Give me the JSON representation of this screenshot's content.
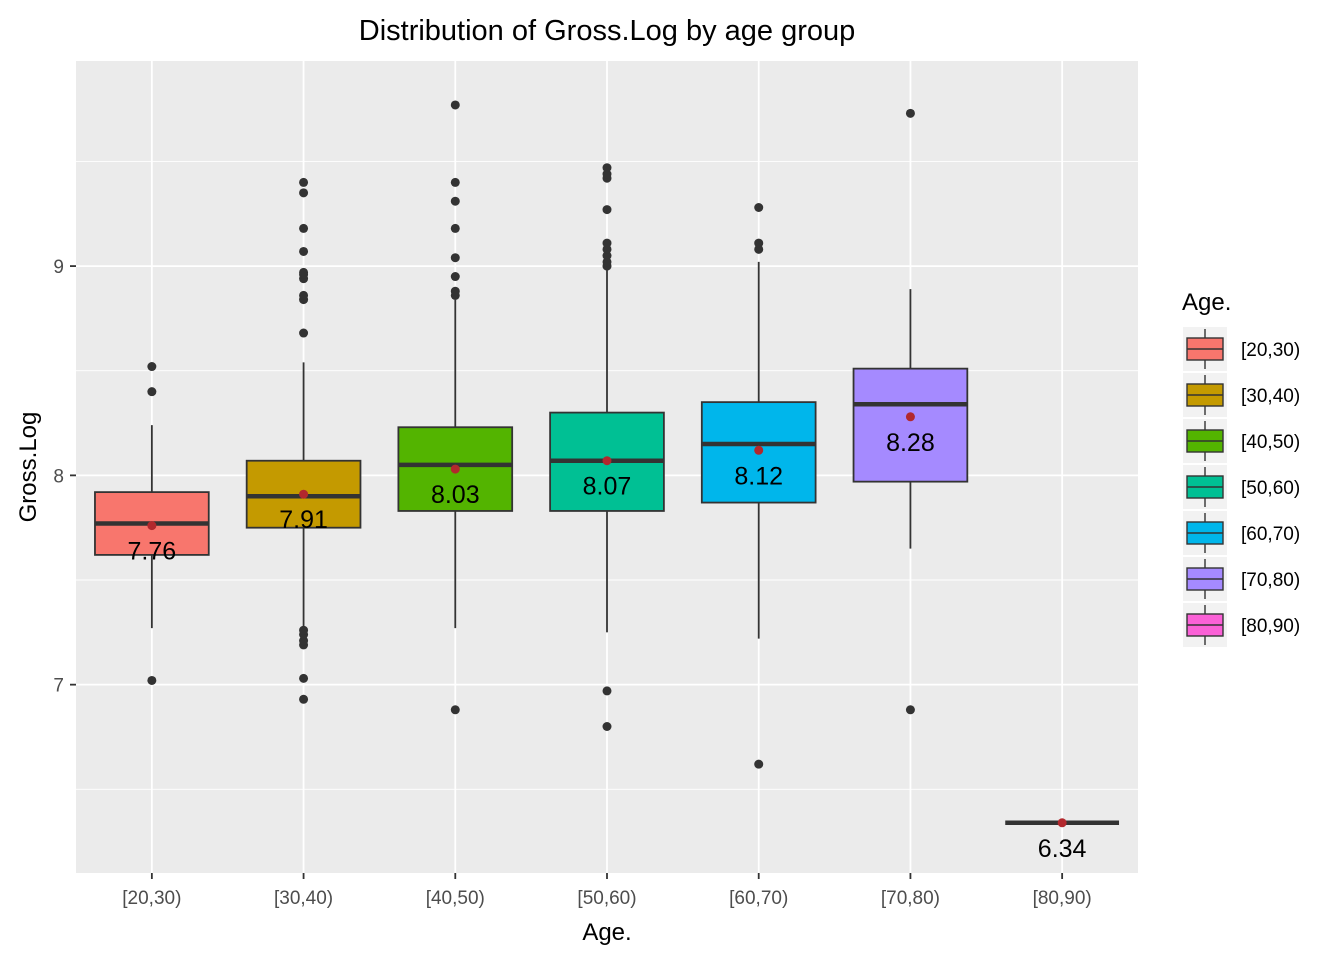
{
  "chart_data": {
    "type": "boxplot",
    "title": "Distribution of Gross.Log by age group",
    "xlabel": "Age.",
    "ylabel": "Gross.Log",
    "ylim": [
      6.1,
      9.98
    ],
    "y_ticks": [
      7,
      8,
      9
    ],
    "y_tick_labels": [
      "7",
      "8",
      "9"
    ],
    "grid": true,
    "legend": {
      "title": "Age.",
      "position": "right"
    },
    "mean_point_color": "#B2282D",
    "categories": [
      "[20,30)",
      "[30,40)",
      "[40,50)",
      "[50,60)",
      "[60,70)",
      "[70,80)",
      "[80,90)"
    ],
    "boxes": [
      {
        "category": "[20,30)",
        "color": "#F8766D",
        "q1": 7.62,
        "median": 7.77,
        "q3": 7.92,
        "whisker_low": 7.27,
        "whisker_high": 8.24,
        "mean": 7.76,
        "mean_label": "7.76",
        "outliers": [
          7.02,
          8.4,
          8.52
        ]
      },
      {
        "category": "[30,40)",
        "color": "#C49A00",
        "q1": 7.75,
        "median": 7.9,
        "q3": 8.07,
        "whisker_low": 7.27,
        "whisker_high": 8.54,
        "mean": 7.91,
        "mean_label": "7.91",
        "outliers": [
          6.93,
          7.03,
          7.19,
          7.21,
          7.24,
          7.26,
          8.68,
          8.84,
          8.86,
          8.94,
          8.96,
          8.97,
          9.07,
          9.18,
          9.35,
          9.4
        ]
      },
      {
        "category": "[40,50)",
        "color": "#53B400",
        "q1": 7.83,
        "median": 8.05,
        "q3": 8.23,
        "whisker_low": 7.27,
        "whisker_high": 8.84,
        "mean": 8.03,
        "mean_label": "8.03",
        "outliers": [
          6.88,
          8.86,
          8.88,
          8.95,
          9.04,
          9.18,
          9.31,
          9.4,
          9.77
        ]
      },
      {
        "category": "[50,60)",
        "color": "#00C094",
        "q1": 7.83,
        "median": 8.07,
        "q3": 8.3,
        "whisker_low": 7.25,
        "whisker_high": 8.99,
        "mean": 8.07,
        "mean_label": "8.07",
        "outliers": [
          6.8,
          6.97,
          9.0,
          9.02,
          9.05,
          9.08,
          9.11,
          9.27,
          9.42,
          9.44,
          9.47
        ]
      },
      {
        "category": "[60,70)",
        "color": "#00B6EB",
        "q1": 7.87,
        "median": 8.15,
        "q3": 8.35,
        "whisker_low": 7.22,
        "whisker_high": 9.02,
        "mean": 8.12,
        "mean_label": "8.12",
        "outliers": [
          6.62,
          9.08,
          9.11,
          9.28
        ]
      },
      {
        "category": "[70,80)",
        "color": "#A58AFF",
        "q1": 7.97,
        "median": 8.34,
        "q3": 8.51,
        "whisker_low": 7.65,
        "whisker_high": 8.89,
        "mean": 8.28,
        "mean_label": "8.28",
        "outliers": [
          6.88,
          9.73
        ]
      },
      {
        "category": "[80,90)",
        "color": "#FB61D7",
        "q1": 6.34,
        "median": 6.34,
        "q3": 6.34,
        "whisker_low": 6.34,
        "whisker_high": 6.34,
        "mean": 6.34,
        "mean_label": "6.34",
        "outliers": []
      }
    ]
  }
}
